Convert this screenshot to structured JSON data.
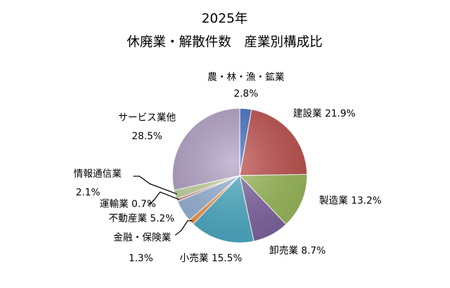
{
  "chart_data": {
    "type": "pie",
    "title": "2025年",
    "subtitle": "休廃業・解散件数　産業別構成比",
    "slices": [
      {
        "label": "農・林・漁・鉱業",
        "value": 2.8,
        "value_text": "2.8%",
        "color": "#4472C4"
      },
      {
        "label": "建設業",
        "value": 21.9,
        "value_text": "21.9%",
        "color": "#C0504D"
      },
      {
        "label": "製造業",
        "value": 13.2,
        "value_text": "13.2%",
        "color": "#9BBB59"
      },
      {
        "label": "卸売業",
        "value": 8.7,
        "value_text": "8.7%",
        "color": "#8064A2"
      },
      {
        "label": "小売業",
        "value": 15.5,
        "value_text": "15.5%",
        "color": "#4BACC6"
      },
      {
        "label": "金融・保険業",
        "value": 1.3,
        "value_text": "1.3%",
        "color": "#F79646"
      },
      {
        "label": "不動産業",
        "value": 5.2,
        "value_text": "5.2%",
        "color": "#95B3D7"
      },
      {
        "label": "運輸業",
        "value": 0.7,
        "value_text": "0.7%",
        "color": "#D99694"
      },
      {
        "label": "情報通信業",
        "value": 2.1,
        "value_text": "2.1%",
        "color": "#C3D69B"
      },
      {
        "label": "サービス業他",
        "value": 28.5,
        "value_text": "28.5%",
        "color": "#B3A2C7"
      }
    ]
  }
}
